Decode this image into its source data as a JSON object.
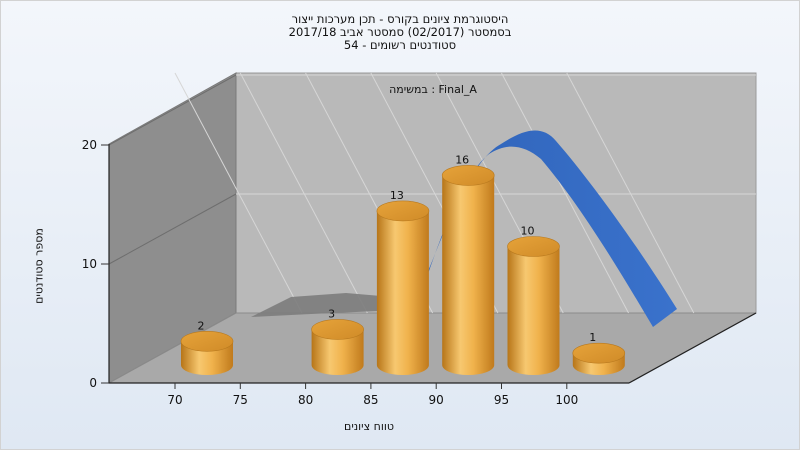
{
  "chart": {
    "title_lines": [
      "היסטוגרמת ציונים בקורס - תכן מערכות ייצור",
      "בסמסטר  (02/2017)  סמסטר אביב 2017/18",
      "סטודנטים רשומים - 54"
    ],
    "legend_text": "במשימה : Final_A",
    "ylabel": "מספר סטודנטים",
    "xlabel": "טווח ציונים"
  },
  "colors": {
    "bar_fill": "#f0b24c",
    "bar_dark": "#c88224",
    "curve": "#3468c0",
    "back_wall": "#b9b9b9",
    "side_wall": "#8e8e8e",
    "floor": "#a9a9a9"
  },
  "chart_data": {
    "type": "bar",
    "categories": [
      "70",
      "75",
      "80",
      "85",
      "90",
      "95",
      "100"
    ],
    "x_ticks": [
      "70",
      "75",
      "80",
      "85",
      "90",
      "95",
      "100"
    ],
    "y_ticks": [
      "0",
      "10",
      "20"
    ],
    "ylim": [
      0,
      20
    ],
    "bars": [
      {
        "x": 70,
        "value": 2
      },
      {
        "x": 80,
        "value": 3
      },
      {
        "x": 85,
        "value": 13
      },
      {
        "x": 90,
        "value": 16
      },
      {
        "x": 95,
        "value": 10
      },
      {
        "x": 100,
        "value": 1
      }
    ],
    "curve": {
      "type": "normal",
      "peak_x": 95
    }
  }
}
